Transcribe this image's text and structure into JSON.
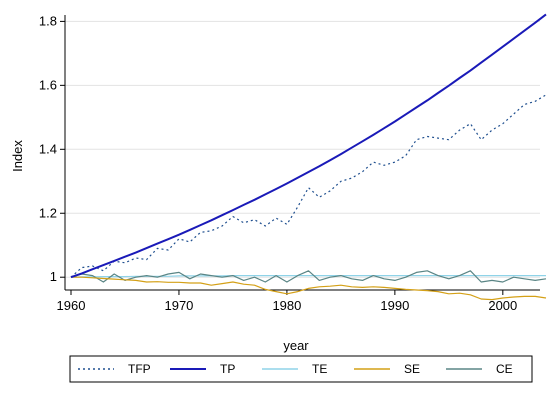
{
  "chart_data": {
    "type": "line",
    "title": "",
    "xlabel": "year",
    "ylabel": "Index",
    "xlim": [
      1960,
      2004
    ],
    "ylim": [
      0.96,
      1.82
    ],
    "xticks": [
      1960,
      1970,
      1980,
      1990,
      2000
    ],
    "xtick_labels": [
      "1960",
      "1970",
      "1980",
      "1990",
      "2000"
    ],
    "yticks": [
      1.0,
      1.2,
      1.4,
      1.6,
      1.8
    ],
    "ytick_labels": [
      "1",
      "1.2",
      "1.4",
      "1.6",
      "1.8"
    ],
    "grid": "horizontal",
    "legend_placement": "bottom",
    "x": [
      1960,
      1961,
      1962,
      1963,
      1964,
      1965,
      1966,
      1967,
      1968,
      1969,
      1970,
      1971,
      1972,
      1973,
      1974,
      1975,
      1976,
      1977,
      1978,
      1979,
      1980,
      1981,
      1982,
      1983,
      1984,
      1985,
      1986,
      1987,
      1988,
      1989,
      1990,
      1991,
      1992,
      1993,
      1994,
      1995,
      1996,
      1997,
      1998,
      1999,
      2000,
      2001,
      2002,
      2003,
      2004
    ],
    "series": [
      {
        "name": "TFP",
        "color": "#1f4f8f",
        "dash": "dotted",
        "values": [
          1.0,
          1.03,
          1.035,
          1.02,
          1.05,
          1.045,
          1.06,
          1.055,
          1.09,
          1.085,
          1.12,
          1.11,
          1.14,
          1.145,
          1.16,
          1.19,
          1.17,
          1.18,
          1.16,
          1.185,
          1.165,
          1.22,
          1.28,
          1.25,
          1.27,
          1.3,
          1.31,
          1.33,
          1.36,
          1.35,
          1.36,
          1.38,
          1.43,
          1.44,
          1.435,
          1.43,
          1.46,
          1.48,
          1.43,
          1.46,
          1.48,
          1.51,
          1.54,
          1.55,
          1.57
        ]
      },
      {
        "name": "TP",
        "color": "#1a1ab8",
        "dash": "solid",
        "values": [
          1.0,
          1.012,
          1.025,
          1.038,
          1.051,
          1.064,
          1.077,
          1.091,
          1.105,
          1.119,
          1.133,
          1.148,
          1.163,
          1.178,
          1.194,
          1.21,
          1.226,
          1.242,
          1.259,
          1.276,
          1.293,
          1.311,
          1.329,
          1.347,
          1.366,
          1.385,
          1.405,
          1.425,
          1.445,
          1.466,
          1.487,
          1.509,
          1.531,
          1.553,
          1.576,
          1.599,
          1.623,
          1.646,
          1.671,
          1.696,
          1.721,
          1.746,
          1.771,
          1.796,
          1.822
        ]
      },
      {
        "name": "TE",
        "color": "#8fd3e8",
        "dash": "solid",
        "values": [
          1.0,
          1.001,
          1.001,
          1.002,
          1.002,
          1.002,
          1.003,
          1.003,
          1.003,
          1.003,
          1.004,
          1.004,
          1.004,
          1.004,
          1.004,
          1.005,
          1.005,
          1.005,
          1.005,
          1.005,
          1.005,
          1.005,
          1.005,
          1.005,
          1.005,
          1.005,
          1.005,
          1.005,
          1.005,
          1.005,
          1.005,
          1.005,
          1.005,
          1.005,
          1.005,
          1.005,
          1.005,
          1.005,
          1.005,
          1.005,
          1.005,
          1.005,
          1.005,
          1.005,
          1.005
        ]
      },
      {
        "name": "SE",
        "color": "#d4a017",
        "dash": "solid",
        "values": [
          1.0,
          1.0,
          0.998,
          0.996,
          0.994,
          0.992,
          0.99,
          0.985,
          0.986,
          0.984,
          0.984,
          0.982,
          0.982,
          0.975,
          0.98,
          0.985,
          0.978,
          0.975,
          0.962,
          0.955,
          0.948,
          0.955,
          0.965,
          0.97,
          0.972,
          0.975,
          0.97,
          0.968,
          0.97,
          0.968,
          0.965,
          0.962,
          0.96,
          0.958,
          0.955,
          0.948,
          0.95,
          0.945,
          0.932,
          0.93,
          0.935,
          0.938,
          0.94,
          0.94,
          0.935
        ]
      },
      {
        "name": "CE",
        "color": "#5a8585",
        "dash": "solid",
        "values": [
          1.0,
          1.01,
          1.005,
          0.985,
          1.01,
          0.99,
          1.0,
          1.005,
          1.0,
          1.01,
          1.015,
          0.995,
          1.01,
          1.005,
          1.0,
          1.005,
          0.99,
          1.0,
          0.985,
          1.005,
          0.985,
          1.005,
          1.02,
          0.99,
          1.0,
          1.005,
          0.995,
          0.99,
          1.005,
          0.995,
          0.99,
          1.0,
          1.015,
          1.02,
          1.005,
          0.995,
          1.005,
          1.02,
          0.985,
          0.99,
          0.985,
          1.0,
          0.995,
          0.99,
          0.995
        ]
      }
    ]
  }
}
